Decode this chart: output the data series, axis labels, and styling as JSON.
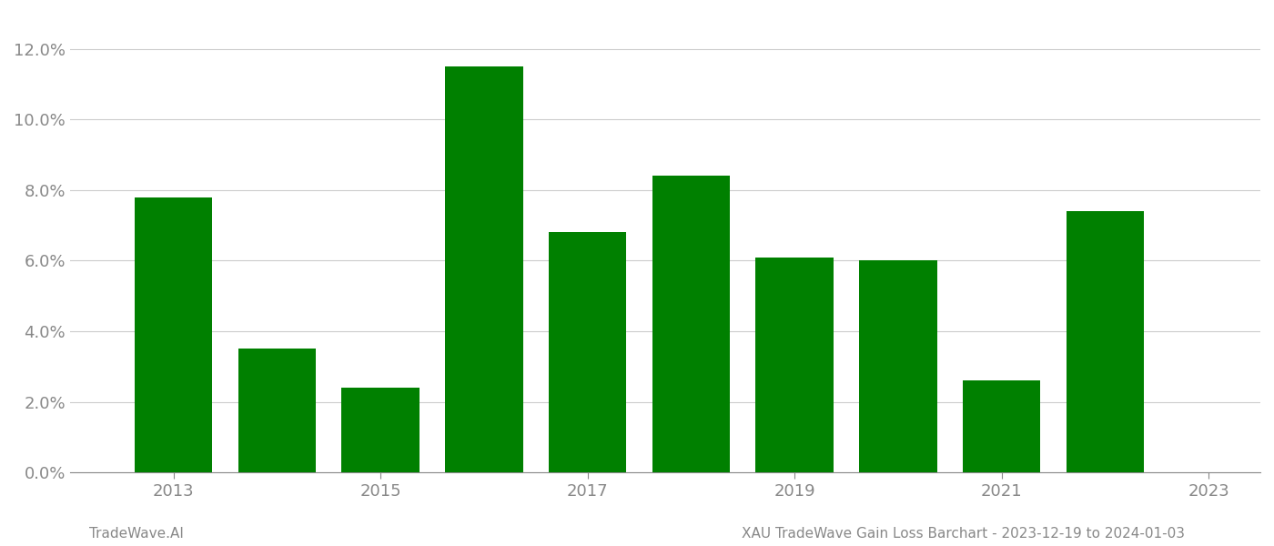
{
  "years": [
    2013,
    2014,
    2015,
    2016,
    2017,
    2018,
    2019,
    2020,
    2021,
    2022
  ],
  "values": [
    0.078,
    0.035,
    0.024,
    0.115,
    0.068,
    0.084,
    0.061,
    0.06,
    0.026,
    0.074
  ],
  "bar_color": "#008000",
  "background_color": "#ffffff",
  "grid_color": "#cccccc",
  "ytick_values": [
    0.0,
    0.02,
    0.04,
    0.06,
    0.08,
    0.1,
    0.12
  ],
  "xtick_labels": [
    "2013",
    "2015",
    "2017",
    "2019",
    "2021",
    "2023"
  ],
  "xtick_positions": [
    2013,
    2015,
    2017,
    2019,
    2021,
    2023
  ],
  "xlim": [
    2012.0,
    2023.5
  ],
  "ylim": [
    0,
    0.13
  ],
  "footer_left": "TradeWave.AI",
  "footer_right": "XAU TradeWave Gain Loss Barchart - 2023-12-19 to 2024-01-03",
  "footer_fontsize": 11,
  "axis_label_color": "#888888",
  "tick_label_color": "#888888",
  "bar_width": 0.75,
  "tick_fontsize": 13
}
